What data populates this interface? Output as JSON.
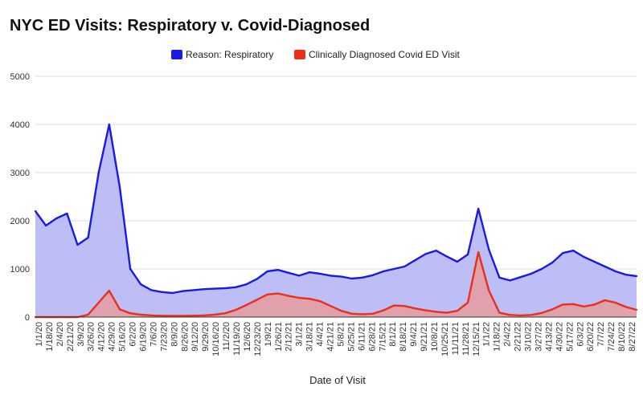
{
  "chart_data": {
    "type": "area",
    "title": "NYC ED Visits: Respiratory v. Covid-Diagnosed",
    "xlabel": "Date of Visit",
    "ylabel": "",
    "ylim": [
      0,
      5000
    ],
    "yticks": [
      0,
      1000,
      2000,
      3000,
      4000,
      5000
    ],
    "grid": true,
    "legend_position": "top-center",
    "x_tick_labels": [
      "1/1/20",
      "1/18/20",
      "2/4/20",
      "2/21/20",
      "3/9/20",
      "3/26/20",
      "4/12/20",
      "4/29/20",
      "5/16/20",
      "6/2/20",
      "6/19/20",
      "7/6/20",
      "7/23/20",
      "8/9/20",
      "8/26/20",
      "9/12/20",
      "9/29/20",
      "10/16/20",
      "11/2/20",
      "11/19/20",
      "12/6/20",
      "12/23/20",
      "1/9/21",
      "1/26/21",
      "2/12/21",
      "3/1/21",
      "3/18/21",
      "4/4/21",
      "4/21/21",
      "5/8/21",
      "5/25/21",
      "6/11/21",
      "6/28/21",
      "7/15/21",
      "8/1/21",
      "8/18/21",
      "9/4/21",
      "9/21/21",
      "10/8/21",
      "10/25/21",
      "11/11/21",
      "11/28/21",
      "12/15/21",
      "1/1/22",
      "1/18/22",
      "2/4/22",
      "2/21/22",
      "3/10/22",
      "3/27/22",
      "4/13/22",
      "4/30/22",
      "5/17/22",
      "6/3/22",
      "6/20/22",
      "7/7/22",
      "7/24/22",
      "8/10/22",
      "8/27/22"
    ],
    "series": [
      {
        "name": "Reason: Respiratory",
        "color": "#1a1ae6",
        "fill": "#b3b3f5",
        "values": [
          2200,
          1900,
          2050,
          2150,
          1500,
          1650,
          3000,
          4000,
          2700,
          1000,
          680,
          560,
          520,
          500,
          540,
          560,
          580,
          590,
          600,
          620,
          680,
          790,
          950,
          980,
          920,
          860,
          930,
          900,
          860,
          840,
          800,
          820,
          870,
          950,
          1000,
          1050,
          1180,
          1310,
          1380,
          1260,
          1150,
          1300,
          2250,
          1400,
          820,
          760,
          830,
          900,
          1000,
          1130,
          1330,
          1380,
          1250,
          1150,
          1050,
          950,
          880,
          850
        ]
      },
      {
        "name": "Clinically Diagnosed Covid ED Visit",
        "color": "#e8301c",
        "fill": "#e89a9a",
        "values": [
          0,
          0,
          0,
          0,
          0,
          50,
          300,
          550,
          160,
          80,
          50,
          35,
          28,
          25,
          25,
          30,
          35,
          50,
          80,
          150,
          250,
          360,
          470,
          490,
          440,
          400,
          380,
          330,
          230,
          130,
          70,
          60,
          70,
          140,
          240,
          230,
          180,
          140,
          110,
          90,
          130,
          300,
          1350,
          550,
          90,
          45,
          35,
          45,
          85,
          160,
          260,
          270,
          220,
          260,
          350,
          300,
          210,
          150
        ]
      }
    ]
  }
}
